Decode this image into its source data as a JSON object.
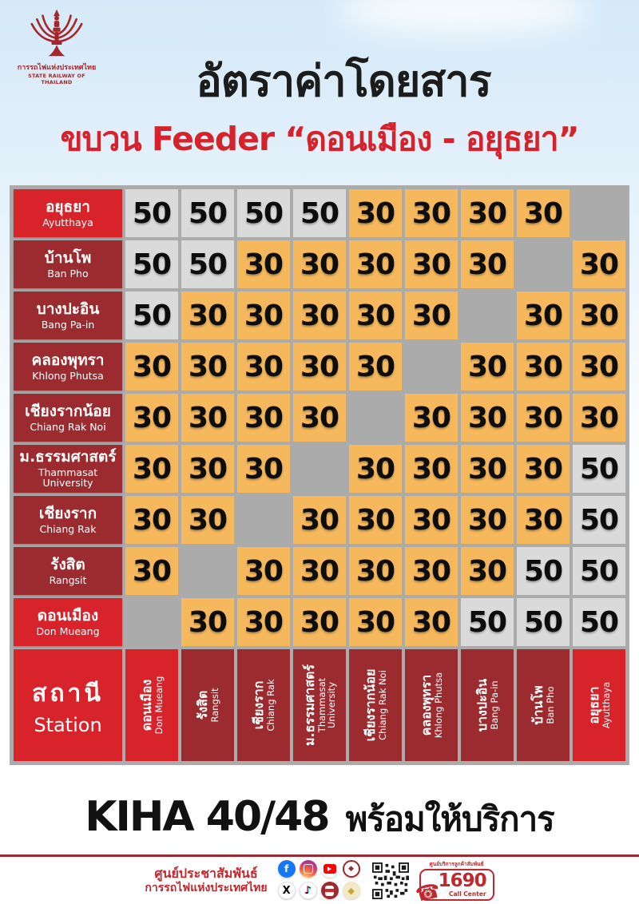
{
  "logo": {
    "thai": "การรถไฟแห่งประเทศไทย",
    "english": "STATE RAILWAY OF THAILAND"
  },
  "header": {
    "title": "อัตราค่าโดยสาร",
    "subtitle": "ขบวน Feeder  “ดอนเมือง - อยุธยา”"
  },
  "table": {
    "corner": {
      "thai": "สถานี",
      "english": "Station"
    },
    "columns": [
      {
        "thai": "ดอนเมือง",
        "english": "Don Mueang",
        "highlight": true
      },
      {
        "thai": "รังสิต",
        "english": "Rangsit",
        "highlight": false
      },
      {
        "thai": "เชียงราก",
        "english": "Chiang Rak",
        "highlight": false
      },
      {
        "thai": "ม.ธรรมศาสตร์",
        "english": "Thammasat\nUniversity",
        "highlight": false
      },
      {
        "thai": "เชียงรากน้อย",
        "english": "Chiang Rak Noi",
        "highlight": false
      },
      {
        "thai": "คลองพุทรา",
        "english": "Khlong Phutsa",
        "highlight": false
      },
      {
        "thai": "บางปะอิน",
        "english": "Bang Pa-in",
        "highlight": false
      },
      {
        "thai": "บ้านโพ",
        "english": "Ban Pho",
        "highlight": false
      },
      {
        "thai": "อยุธยา",
        "english": "Ayutthaya",
        "highlight": true
      }
    ],
    "rows": [
      {
        "thai": "อยุธยา",
        "english": "Ayutthaya",
        "highlight": true,
        "fares": [
          50,
          50,
          50,
          50,
          30,
          30,
          30,
          30,
          null
        ]
      },
      {
        "thai": "บ้านโพ",
        "english": "Ban Pho",
        "highlight": false,
        "fares": [
          50,
          50,
          30,
          30,
          30,
          30,
          30,
          null,
          30
        ]
      },
      {
        "thai": "บางปะอิน",
        "english": "Bang Pa-in",
        "highlight": false,
        "fares": [
          50,
          30,
          30,
          30,
          30,
          30,
          null,
          30,
          30
        ]
      },
      {
        "thai": "คลองพุทรา",
        "english": "Khlong Phutsa",
        "highlight": false,
        "fares": [
          30,
          30,
          30,
          30,
          30,
          null,
          30,
          30,
          30
        ]
      },
      {
        "thai": "เชียงรากน้อย",
        "english": "Chiang Rak Noi",
        "highlight": false,
        "fares": [
          30,
          30,
          30,
          30,
          null,
          30,
          30,
          30,
          30
        ]
      },
      {
        "thai": "ม.ธรรมศาสตร์",
        "english": "Thammasat\nUniversity",
        "highlight": false,
        "fares": [
          30,
          30,
          30,
          null,
          30,
          30,
          30,
          30,
          50
        ]
      },
      {
        "thai": "เชียงราก",
        "english": "Chiang Rak",
        "highlight": false,
        "fares": [
          30,
          30,
          null,
          30,
          30,
          30,
          30,
          30,
          50
        ]
      },
      {
        "thai": "รังสิต",
        "english": "Rangsit",
        "highlight": false,
        "fares": [
          30,
          null,
          30,
          30,
          30,
          30,
          30,
          50,
          50
        ]
      },
      {
        "thai": "ดอนเมือง",
        "english": "Don Mueang",
        "highlight": true,
        "fares": [
          null,
          30,
          30,
          30,
          30,
          30,
          50,
          50,
          50
        ]
      }
    ]
  },
  "banner": {
    "model": "KIHA 40/48",
    "thai": "พร้อมให้บริการ"
  },
  "footer": {
    "org_line1": "ศูนย์ประชาสัมพันธ์",
    "org_line2": "การรถไฟแห่งประเทศไทย",
    "social_icons": [
      "facebook-icon",
      "instagram-icon",
      "youtube-icon",
      "srt-seal-icon",
      "x-icon",
      "tiktok-icon",
      "train-icon",
      "gold-seal-icon"
    ],
    "qr": "qr-code",
    "call_center": {
      "label_top": "ศูนย์บริการลูกค้าสัมพันธ์",
      "number": "1690",
      "label_bottom": "Call Center"
    }
  },
  "colors": {
    "bright_red": "#D8232A",
    "dark_red": "#9C2B2F",
    "fare30_orange": "#F5B85C",
    "fare50_gray": "#DADADA",
    "table_bg_gray": "#ABABAB",
    "footer_red": "#C2272D"
  }
}
